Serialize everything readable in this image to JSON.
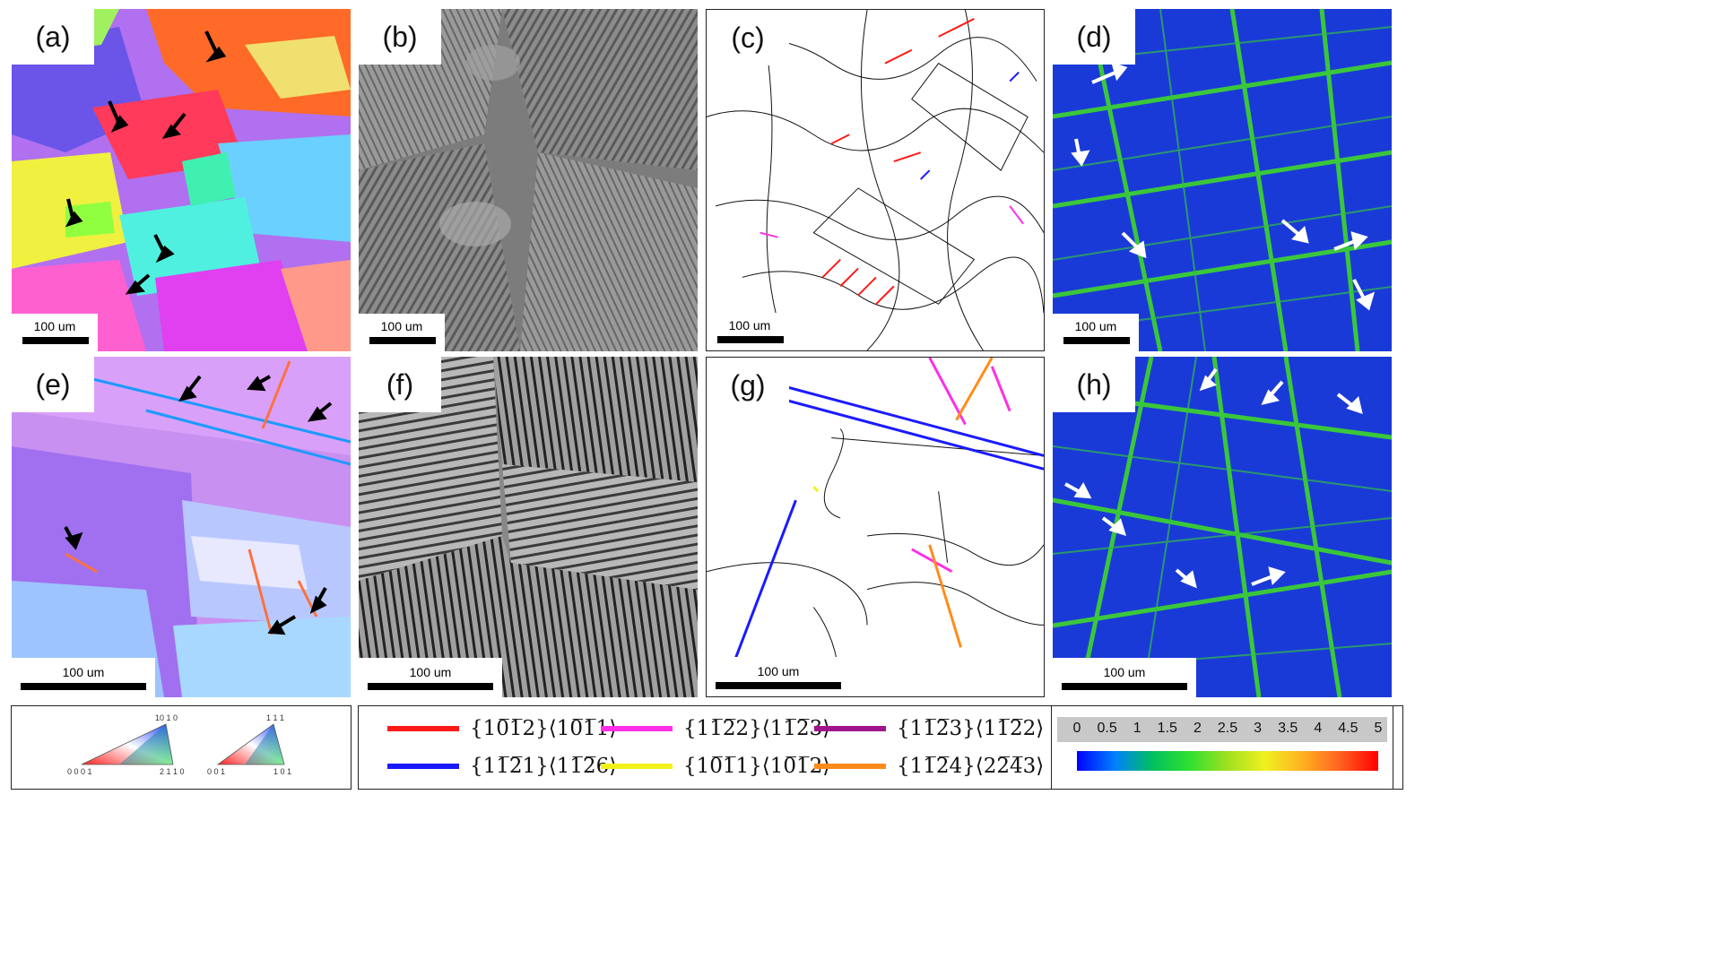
{
  "panels": [
    {
      "label": "(a)",
      "scale": "100 um"
    },
    {
      "label": "(b)",
      "scale": "100 um"
    },
    {
      "label": "(c)",
      "scale": "100 um"
    },
    {
      "label": "(d)",
      "scale": "100 um"
    },
    {
      "label": "(e)",
      "scale": "100 um"
    },
    {
      "label": "(f)",
      "scale": "100 um"
    },
    {
      "label": "(g)",
      "scale": "100 um"
    },
    {
      "label": "(h)",
      "scale": "100 um"
    }
  ],
  "ipf_legend": {
    "hex": {
      "top": "10 1 0",
      "left": "0 0 0 1",
      "right": "2 1 1 0"
    },
    "cubic": {
      "top": "1 1 1",
      "left": "0 0 1",
      "right": "1 0 1"
    }
  },
  "twin_legend": [
    {
      "text": "{10̅1̅2}⟨10̅1̅1⟩",
      "color": "#ff1a1a"
    },
    {
      "text": "{11̅2̅2}⟨11̅2̅3⟩",
      "color": "#ff2fe6"
    },
    {
      "text": "{11̅2̅3}⟨11̅2̅2⟩",
      "color": "#a0148c"
    },
    {
      "text": "{11̅2̅1}⟨11̅2̅6⟩",
      "color": "#1a1aff"
    },
    {
      "text": "{10̅1̅1}⟨10̅1̅2⟩",
      "color": "#f2f21a"
    },
    {
      "text": "{11̅2̅4}⟨22̅4̅3⟩",
      "color": "#ff8c1a"
    }
  ],
  "colorbar": {
    "ticks": [
      "0",
      "0.5",
      "1",
      "1.5",
      "2",
      "2.5",
      "3",
      "3.5",
      "4",
      "4.5",
      "5"
    ],
    "colors": [
      "#0000ff",
      "#0080ff",
      "#00c060",
      "#30e030",
      "#a0e020",
      "#f0f020",
      "#ffb020",
      "#ff6020",
      "#ff0000"
    ]
  }
}
